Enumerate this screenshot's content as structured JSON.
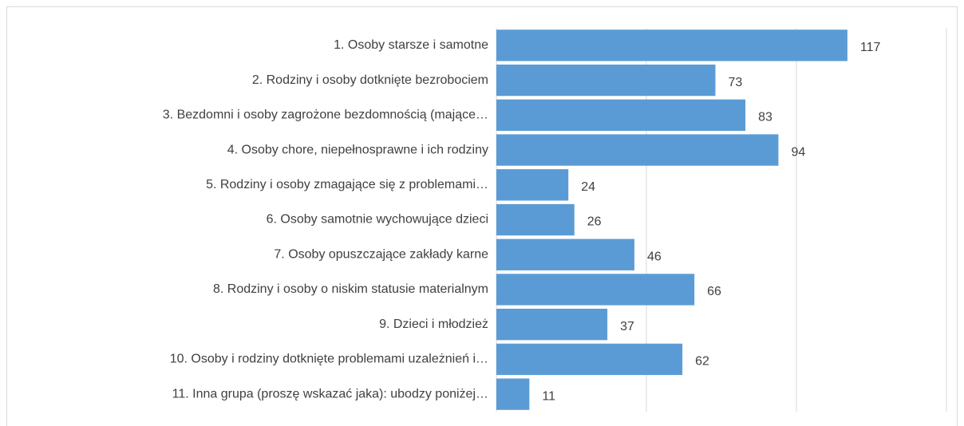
{
  "chart_data": {
    "type": "barh",
    "categories": [
      "1. Osoby starsze i samotne",
      "2. Rodziny i osoby dotknięte bezrobociem",
      "3. Bezdomni i osoby zagrożone bezdomnością (mające…",
      "4. Osoby chore, niepełnosprawne i ich rodziny",
      "5. Rodziny i osoby zmagające się z problemami…",
      "6. Osoby samotnie wychowujące dzieci",
      "7. Osoby opuszczające zakłady karne",
      "8. Rodziny i osoby o niskim statusie materialnym",
      "9. Dzieci i młodzież",
      "10. Osoby i rodziny dotknięte problemami uzależnień i…",
      "11. Inna grupa (proszę wskazać jaka): ubodzy poniżej…"
    ],
    "values": [
      117,
      73,
      83,
      94,
      24,
      26,
      46,
      66,
      37,
      62,
      11
    ],
    "color": "#5b9bd5",
    "xlim": [
      0,
      150
    ],
    "xticks": [
      0,
      50,
      100,
      150
    ],
    "grid": true
  }
}
